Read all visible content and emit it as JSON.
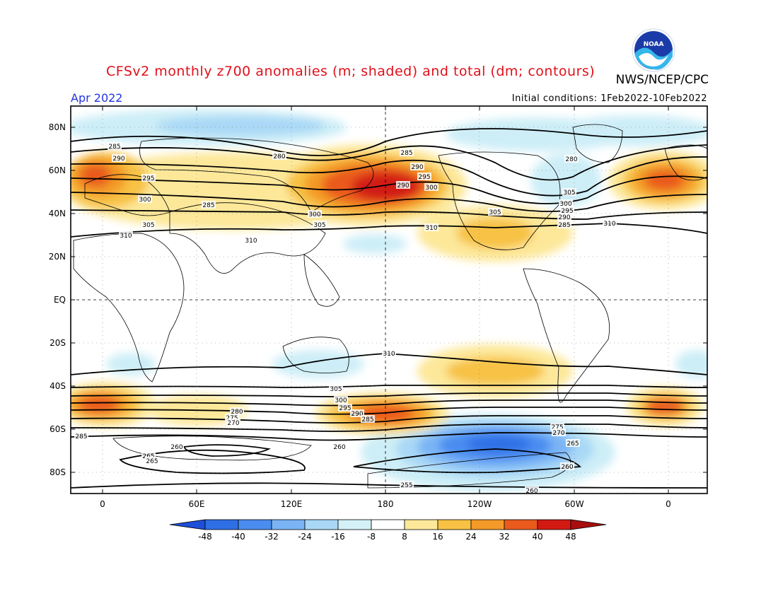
{
  "header": {
    "title": "CFSv2 monthly z700 anomalies (m; shaded) and total (dm; contours)",
    "org": "NWS/NCEP/CPC",
    "period": "Apr 2022",
    "initial_conditions": "Initial conditions: 1Feb2022-10Feb2022",
    "logo_text": "NOAA"
  },
  "axes": {
    "lat_labels": [
      "80N",
      "60N",
      "40N",
      "20N",
      "EQ",
      "20S",
      "40S",
      "60S",
      "80S"
    ],
    "lon_labels": [
      "0",
      "60E",
      "120E",
      "180",
      "120W",
      "60W",
      "0"
    ]
  },
  "contour_labels": [
    "285",
    "290",
    "295",
    "300",
    "305",
    "310",
    "280",
    "285",
    "290",
    "300",
    "305",
    "310",
    "285",
    "290",
    "295",
    "300",
    "305",
    "310",
    "280",
    "310",
    "305",
    "300",
    "295",
    "290",
    "285",
    "285",
    "260",
    "265",
    "280",
    "275",
    "270",
    "305",
    "300",
    "295",
    "290",
    "285",
    "260",
    "275",
    "270",
    "265",
    "260",
    "310",
    "255",
    "265",
    "260"
  ],
  "colorbar": {
    "ticks": [
      "-48",
      "-40",
      "-32",
      "-24",
      "-16",
      "-8",
      "8",
      "16",
      "24",
      "32",
      "40",
      "48"
    ],
    "colors": [
      "#1e4fd8",
      "#2f6fe6",
      "#4a8cf0",
      "#7ab4f5",
      "#a9d8f6",
      "#d4f1f8",
      "#ffffff",
      "#fde89a",
      "#f7c244",
      "#f39a28",
      "#ea5a1c",
      "#d21a12",
      "#a80e0e"
    ]
  }
}
